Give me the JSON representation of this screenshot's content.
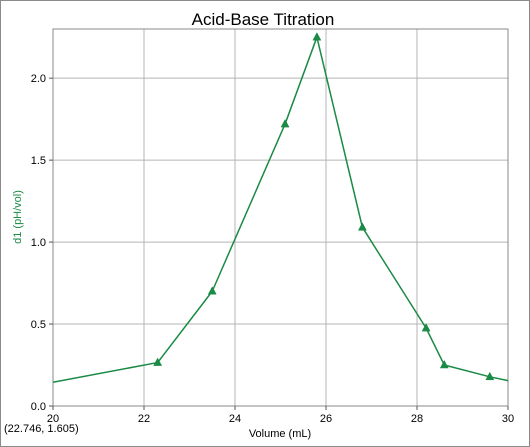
{
  "chart_data": {
    "type": "line",
    "title": "Acid-Base Titration",
    "xlabel": "Volume (mL)",
    "ylabel": "d1 (pH/vol)",
    "xlim": [
      20,
      30
    ],
    "ylim": [
      0,
      2.3
    ],
    "xticks": [
      "20",
      "22",
      "24",
      "26",
      "28",
      "30"
    ],
    "xtick_values": [
      20,
      22,
      24,
      26,
      28,
      30
    ],
    "yticks": [
      "0.0",
      "0.5",
      "1.0",
      "1.5",
      "2.0"
    ],
    "ytick_values": [
      0,
      0.5,
      1.0,
      1.5,
      2.0
    ],
    "grid": true,
    "series": [
      {
        "color": "#1a8a45",
        "marker": "triangle",
        "x": [
          20.0,
          22.3,
          23.5,
          25.1,
          25.8,
          26.8,
          28.2,
          28.6,
          29.6,
          30.0
        ],
        "y": [
          0.145,
          0.265,
          0.7,
          1.72,
          2.25,
          1.09,
          0.475,
          0.25,
          0.178,
          0.155
        ],
        "markers": [
          false,
          true,
          true,
          true,
          true,
          true,
          true,
          true,
          true,
          false
        ]
      }
    ],
    "cursor_readout": "(22.746, 1.605)"
  }
}
